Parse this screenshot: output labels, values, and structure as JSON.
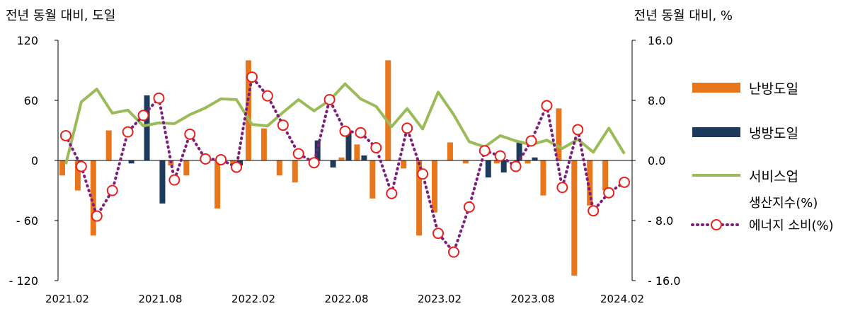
{
  "chart_data": {
    "type": "bar",
    "left_axis_title": "전년 동월 대비, 도일",
    "right_axis_title": "전년 동월 대비, %",
    "left_ylim": [
      -120,
      120
    ],
    "left_ticks": [
      "120",
      "60",
      "0",
      "- 60",
      "- 120"
    ],
    "left_tick_values": [
      120,
      60,
      0,
      -60,
      -120
    ],
    "right_ylim": [
      -16,
      16
    ],
    "right_ticks": [
      "16.0",
      "8.0",
      "0.0",
      "- 8.0",
      "- 16.0"
    ],
    "right_tick_values": [
      16,
      8,
      0,
      -8,
      -16
    ],
    "x_tick_labels": [
      "2021.02",
      "2021.08",
      "2022.02",
      "2022.08",
      "2023.02",
      "2023.08",
      "2024.02"
    ],
    "x_tick_indices": [
      0,
      6,
      12,
      18,
      24,
      30,
      36
    ],
    "months": [
      "2021.02",
      "2021.03",
      "2021.04",
      "2021.05",
      "2021.06",
      "2021.07",
      "2021.08",
      "2021.09",
      "2021.10",
      "2021.11",
      "2021.12",
      "2022.01",
      "2022.02",
      "2022.03",
      "2022.04",
      "2022.05",
      "2022.06",
      "2022.07",
      "2022.08",
      "2022.09",
      "2022.10",
      "2022.11",
      "2022.12",
      "2023.01",
      "2023.02",
      "2023.03",
      "2023.04",
      "2023.05",
      "2023.06",
      "2023.07",
      "2023.08",
      "2023.09",
      "2023.10",
      "2023.11",
      "2023.12",
      "2024.01",
      "2024.02"
    ],
    "series": [
      {
        "name": "난방도일",
        "type": "bar",
        "axis": "left",
        "color": "#E8761C",
        "values": [
          -15,
          -30,
          -75,
          30,
          0,
          0,
          0,
          -5,
          -15,
          0,
          -48,
          -3,
          100,
          32,
          -15,
          -22,
          0,
          0,
          3,
          16,
          -38,
          100,
          -8,
          -75,
          -52,
          18,
          -3,
          0,
          -3,
          0,
          -3,
          -35,
          52,
          -115,
          -45,
          -30,
          0
        ]
      },
      {
        "name": "냉방도일",
        "type": "bar",
        "axis": "left",
        "color": "#1B3A5C",
        "values": [
          0,
          0,
          0,
          0,
          -3,
          65,
          -43,
          0,
          0,
          0,
          0,
          -5,
          0,
          0,
          0,
          0,
          20,
          -7,
          28,
          5,
          0,
          0,
          0,
          0,
          0,
          0,
          0,
          -17,
          -12,
          18,
          3,
          0,
          0,
          0,
          0,
          0,
          0
        ]
      },
      {
        "name": "서비스업",
        "name_line2": "생산지수(%)",
        "type": "line",
        "axis": "right",
        "color": "#9BBB59",
        "values": [
          -0.5,
          7.8,
          9.5,
          6.3,
          6.7,
          4.6,
          5.0,
          4.9,
          6.1,
          7.0,
          8.2,
          8.1,
          4.8,
          4.6,
          6.4,
          8.1,
          6.6,
          8.0,
          10.2,
          8.2,
          7.2,
          4.5,
          6.9,
          4.2,
          9.1,
          6.1,
          2.5,
          1.8,
          3.3,
          2.6,
          2.1,
          2.7,
          1.6,
          2.8,
          1.1,
          4.3,
          0.9
        ]
      },
      {
        "name": "에너지 소비(%)",
        "type": "line",
        "axis": "right",
        "color": "#7B1F7B",
        "values": [
          3.3,
          -0.8,
          -7.4,
          -4.0,
          3.8,
          6.0,
          8.3,
          -2.6,
          3.5,
          0.2,
          0.1,
          -0.9,
          11.1,
          8.6,
          4.7,
          0.9,
          -0.3,
          8.1,
          3.9,
          3.7,
          1.7,
          -4.4,
          4.3,
          -1.8,
          -9.7,
          -12.2,
          -6.2,
          1.3,
          0.6,
          -0.8,
          2.6,
          7.3,
          -3.6,
          4.1,
          -6.7,
          -4.3,
          -2.9
        ]
      }
    ]
  }
}
